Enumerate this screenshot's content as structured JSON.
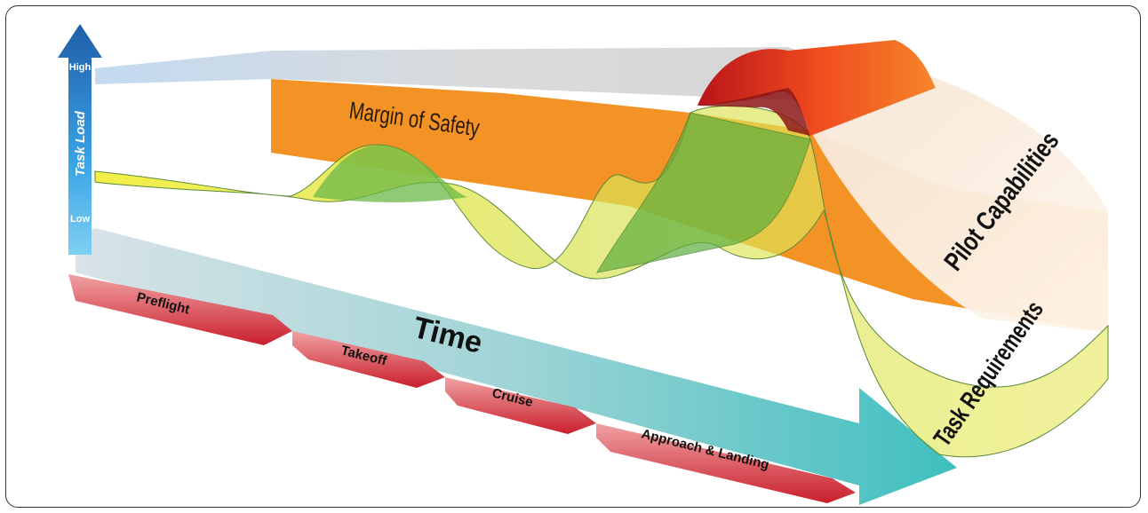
{
  "diagram": {
    "axis": {
      "title": "Task Load",
      "high_label": "High",
      "low_label": "Low"
    },
    "time_label": "Time",
    "bands": {
      "margin_of_safety": "Margin of Safety",
      "pilot_capabilities": "Pilot Capabilities",
      "task_requirements": "Task Requirements"
    },
    "phases": [
      "Preflight",
      "Takeoff",
      "Cruise",
      "Approach & Landing"
    ]
  },
  "colors": {
    "axis_blue": "#2f8fd8",
    "time_teal": "#4fc4c4",
    "safety_orange": "#f39325",
    "capability_red": "#e23a1e",
    "requirement_yellow": "#f2ee3c",
    "phase_red": "#d8393f"
  }
}
